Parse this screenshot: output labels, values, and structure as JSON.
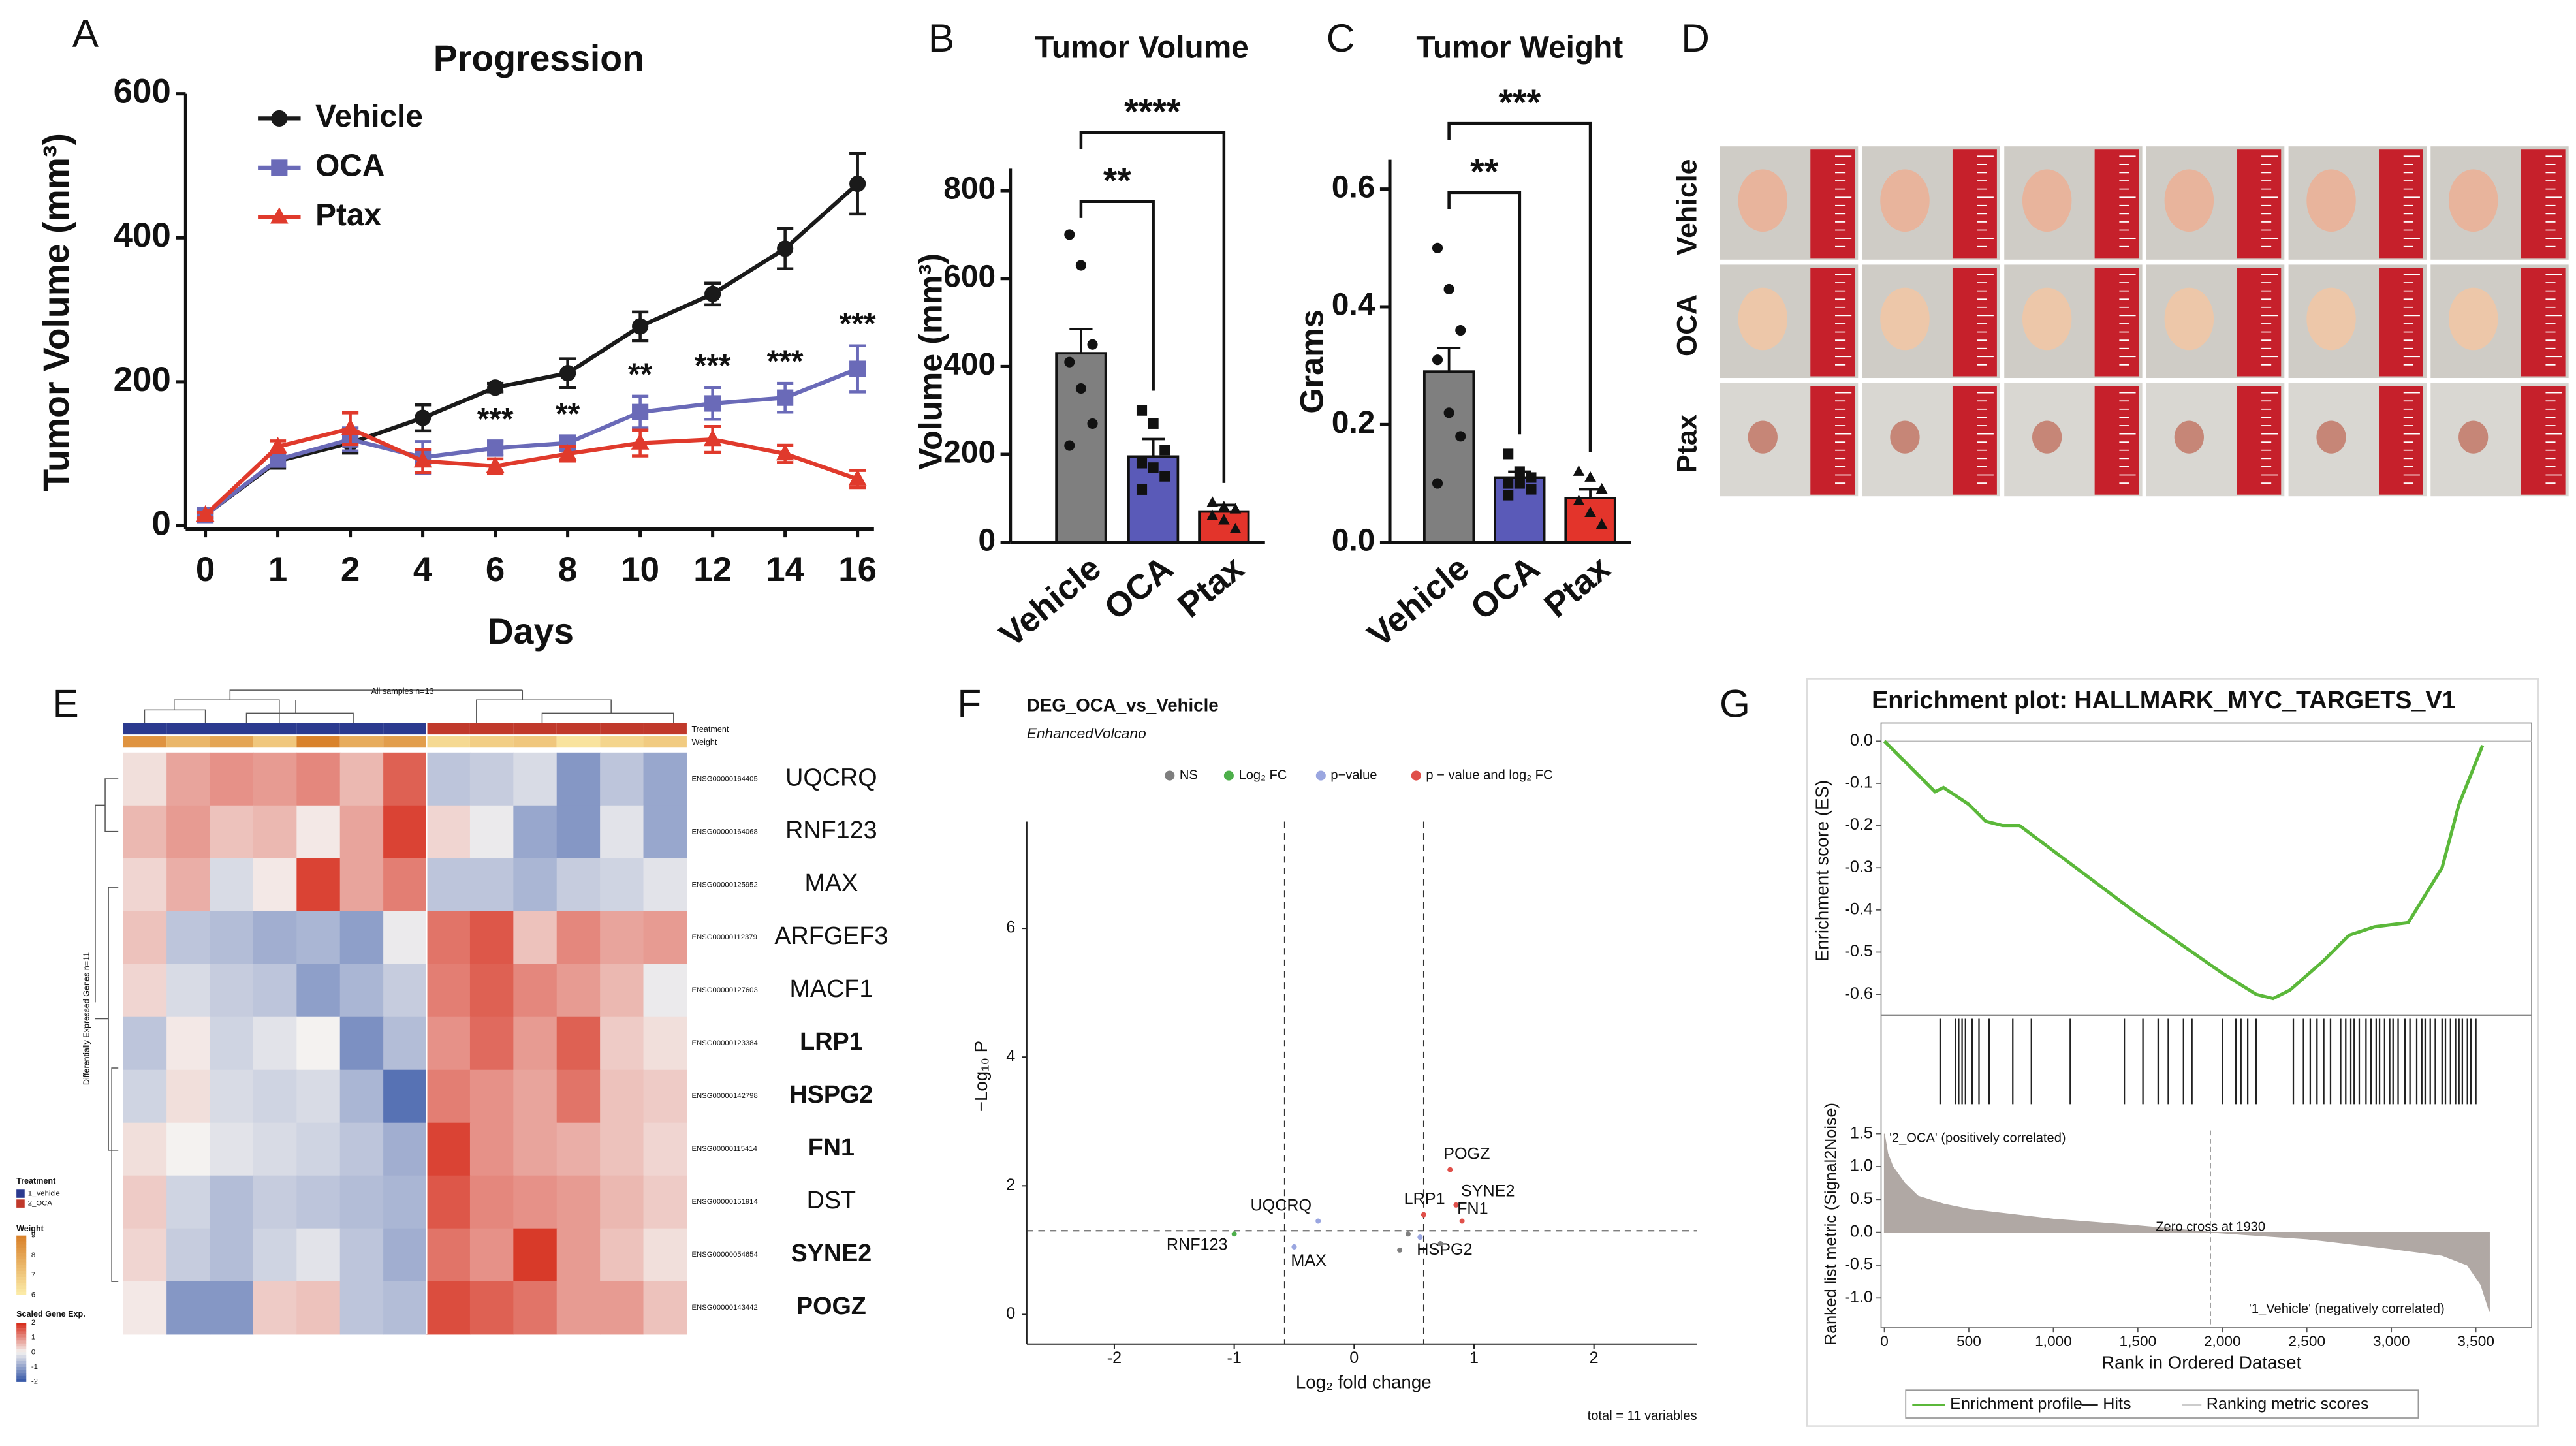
{
  "panel_labels": [
    "A",
    "B",
    "C",
    "D",
    "E",
    "F",
    "G"
  ],
  "panel_d": {
    "rows": [
      "Vehicle",
      "OCA",
      "Ptax"
    ]
  },
  "chart_data": [
    {
      "type": "line",
      "title": "Progression",
      "xlabel": "Days",
      "ylabel": "Tumor Volume (mm³)",
      "categories": [
        0,
        1,
        2,
        4,
        6,
        8,
        10,
        12,
        14,
        16
      ],
      "ylim": [
        0,
        600
      ],
      "yticks": [
        0,
        200,
        400,
        600
      ],
      "legend": "upper left",
      "series": [
        {
          "name": "Vehicle",
          "color": "#1a1a1a",
          "marker": "circle",
          "values": [
            15,
            90,
            115,
            150,
            192,
            212,
            277,
            322,
            385,
            475
          ],
          "errors": [
            4,
            10,
            14,
            18,
            6,
            20,
            20,
            15,
            28,
            42
          ]
        },
        {
          "name": "OCA",
          "color": "#6a6ab8",
          "marker": "square",
          "values": [
            15,
            92,
            120,
            95,
            108,
            115,
            158,
            170,
            178,
            218
          ],
          "errors": [
            4,
            8,
            16,
            22,
            10,
            10,
            22,
            22,
            20,
            32
          ],
          "significance": [
            null,
            null,
            null,
            null,
            "***",
            "**",
            "**",
            "***",
            "***",
            "***"
          ]
        },
        {
          "name": "Ptax",
          "color": "#e03a2c",
          "marker": "triangle",
          "values": [
            15,
            110,
            135,
            90,
            83,
            100,
            115,
            120,
            100,
            65
          ],
          "errors": [
            4,
            8,
            22,
            16,
            10,
            10,
            18,
            18,
            12,
            12
          ]
        }
      ]
    },
    {
      "type": "bar",
      "title": "Tumor Volume",
      "ylabel": "Volume (mm³)",
      "categories": [
        "Vehicle",
        "OCA",
        "Ptax"
      ],
      "values": [
        430,
        195,
        70
      ],
      "errors": [
        55,
        40,
        15
      ],
      "colors": [
        "#7f7f7f",
        "#5a5ab8",
        "#e3342b"
      ],
      "markers": [
        "circle",
        "square",
        "triangle"
      ],
      "points": [
        [
          700,
          630,
          450,
          410,
          350,
          270,
          220
        ],
        [
          300,
          270,
          210,
          180,
          170,
          150,
          120
        ],
        [
          90,
          80,
          75,
          60,
          50,
          30
        ]
      ],
      "ylim": [
        0,
        850
      ],
      "yticks": [
        0,
        200,
        400,
        600,
        800
      ],
      "brackets": [
        {
          "from": 0,
          "to": 1,
          "label": "**"
        },
        {
          "from": 0,
          "to": 2,
          "label": "****"
        }
      ]
    },
    {
      "type": "bar",
      "title": "Tumor Weight",
      "ylabel": "Grams",
      "categories": [
        "Vehicle",
        "OCA",
        "Ptax"
      ],
      "values": [
        0.29,
        0.11,
        0.075
      ],
      "errors": [
        0.04,
        0.01,
        0.015
      ],
      "colors": [
        "#7f7f7f",
        "#5a5ab8",
        "#e3342b"
      ],
      "markers": [
        "circle",
        "square",
        "triangle"
      ],
      "points": [
        [
          0.5,
          0.43,
          0.36,
          0.31,
          0.22,
          0.18,
          0.1
        ],
        [
          0.15,
          0.12,
          0.11,
          0.1,
          0.1,
          0.09,
          0.08
        ],
        [
          0.12,
          0.11,
          0.09,
          0.07,
          0.05,
          0.03
        ]
      ],
      "ylim": [
        0,
        0.65
      ],
      "yticks": [
        {
          "value": 0,
          "label": "0.0"
        },
        0.2,
        0.4,
        0.6
      ],
      "brackets": [
        {
          "from": 0,
          "to": 1,
          "label": "**"
        },
        {
          "from": 0,
          "to": 2,
          "label": "***"
        }
      ]
    },
    {
      "type": "heatmap",
      "title": "All samples n=13",
      "ylabel": "Differentially Expressed Genes n=11",
      "annotation_rows": [
        "Treatment",
        "Weight"
      ],
      "rows": [
        "UQCRQ",
        "RNF123",
        "MAX",
        "ARFGEF3",
        "MACF1",
        "LRP1",
        "HSPG2",
        "FN1",
        "DST",
        "SYNE2",
        "POGZ"
      ],
      "bold": [
        false,
        false,
        false,
        false,
        false,
        true,
        true,
        true,
        false,
        true,
        true
      ],
      "row_ids": [
        "ENSG00000164405",
        "ENSG00000164068",
        "ENSG00000125952",
        "ENSG00000112379",
        "ENSG00000127603",
        "ENSG00000123384",
        "ENSG00000142798",
        "ENSG00000115414",
        "ENSG00000151914",
        "ENSG00000054654",
        "ENSG00000143442"
      ],
      "groups": [
        {
          "name": "1_Vehicle",
          "color": "#2b3a8f"
        },
        {
          "name": "2_OCA",
          "color": "#c0392b"
        }
      ],
      "column_groups": [
        0,
        0,
        0,
        0,
        0,
        0,
        0,
        1,
        1,
        1,
        1,
        1,
        1
      ],
      "weights": [
        8.5,
        7.5,
        8,
        7,
        9,
        7.8,
        8.2,
        6.5,
        6.8,
        7,
        6.2,
        6.6,
        6.9
      ],
      "wlim": [
        6,
        9
      ],
      "wticks": [
        9,
        8,
        7,
        6
      ],
      "legend_titles": [
        "Treatment",
        "Weight",
        "Scaled Gene Exp."
      ],
      "colorscale": [
        "#3b5ba9",
        "#f4f2f0",
        "#d7301f"
      ],
      "clim": [
        -2,
        2
      ],
      "cticks": [
        2,
        1,
        0,
        -1,
        -2
      ],
      "values": [
        [
          0.2,
          0.8,
          1.0,
          0.9,
          1.1,
          0.6,
          1.5,
          -0.6,
          -0.5,
          -0.3,
          -1.2,
          -0.6,
          -1.0
        ],
        [
          0.6,
          0.9,
          0.5,
          0.6,
          0.1,
          0.8,
          1.8,
          0.3,
          -0.1,
          -1.0,
          -1.2,
          -0.2,
          -1.0
        ],
        [
          0.3,
          0.7,
          -0.3,
          0.1,
          1.8,
          0.8,
          1.2,
          -0.6,
          -0.6,
          -0.8,
          -0.5,
          -0.4,
          -0.2
        ],
        [
          0.5,
          -0.6,
          -0.7,
          -0.9,
          -0.8,
          -1.1,
          -0.1,
          1.3,
          1.6,
          0.5,
          1.1,
          0.8,
          0.9
        ],
        [
          0.3,
          -0.3,
          -0.5,
          -0.6,
          -1.1,
          -0.8,
          -0.5,
          1.2,
          1.5,
          1.1,
          0.9,
          0.6,
          -0.1
        ],
        [
          -0.6,
          0.1,
          -0.4,
          -0.2,
          0.0,
          -1.3,
          -0.7,
          1.0,
          1.4,
          0.9,
          1.5,
          0.4,
          0.2
        ],
        [
          -0.4,
          0.2,
          -0.3,
          -0.4,
          -0.3,
          -0.8,
          -1.7,
          1.2,
          1.0,
          0.8,
          1.3,
          0.5,
          0.4
        ],
        [
          0.2,
          0.0,
          -0.2,
          -0.3,
          -0.4,
          -0.6,
          -0.9,
          1.8,
          1.0,
          0.8,
          0.7,
          0.5,
          0.3
        ],
        [
          0.4,
          -0.4,
          -0.7,
          -0.5,
          -0.6,
          -0.7,
          -0.8,
          1.6,
          1.1,
          1.0,
          0.9,
          0.6,
          0.4
        ],
        [
          0.3,
          -0.5,
          -0.7,
          -0.4,
          -0.2,
          -0.6,
          -0.9,
          1.3,
          1.0,
          1.9,
          0.9,
          0.5,
          0.2
        ],
        [
          0.1,
          -1.2,
          -1.2,
          0.4,
          0.5,
          -0.6,
          -0.7,
          1.7,
          1.5,
          1.3,
          0.9,
          0.9,
          0.5
        ]
      ]
    },
    {
      "type": "scatter",
      "title": "DEG_OCA_vs_Vehicle",
      "subtitle": "EnhancedVolcano",
      "xlabel": "Log₂ fold change",
      "ylabel": "−Log₁₀ P",
      "caption": "total = 11 variables",
      "legend": [
        {
          "name": "NS",
          "color": "#7f7f7f"
        },
        {
          "name": "Log₂ FC",
          "color": "#4daf4a"
        },
        {
          "name": "p−value",
          "color": "#9aa6e0"
        },
        {
          "name": "p − value and log₂ FC",
          "color": "#e0504a"
        }
      ],
      "labels": [
        "POGZ",
        "SYNE2",
        "FN1",
        "LRP1",
        "HSPG2",
        "UQCRQ",
        "RNF123",
        "MAX",
        null,
        null,
        null
      ],
      "x": [
        0.8,
        0.85,
        0.9,
        0.58,
        0.55,
        -0.3,
        -1.0,
        -0.5,
        0.38,
        0.72,
        0.45
      ],
      "y": [
        2.25,
        1.7,
        1.45,
        1.55,
        1.2,
        1.45,
        1.25,
        1.05,
        1.0,
        1.1,
        1.25
      ],
      "groups": [
        3,
        3,
        3,
        3,
        2,
        2,
        1,
        2,
        0,
        0,
        0
      ],
      "xlim": [
        -2.73,
        2.86
      ],
      "ylim": [
        -0.46,
        7.66
      ],
      "xticks": [
        -2,
        -1,
        0,
        1,
        2
      ],
      "yticks": [
        0,
        2,
        4,
        6
      ],
      "vlines": [
        -0.58,
        0.58
      ],
      "hline": 1.3
    },
    {
      "type": "enrichment",
      "title": "Enrichment plot: HALLMARK_MYC_TARGETS_V1",
      "ylabel": "Enrichment score (ES)",
      "xlabel": "Rank in Ordered Dataset",
      "y2label": "Ranked list metric (Signal2Noise)",
      "xlim": [
        0,
        3830
      ],
      "xticks": [
        0,
        500,
        {
          "value": 1000,
          "label": "1,000"
        },
        {
          "value": 1500,
          "label": "1,500"
        },
        {
          "value": 2000,
          "label": "2,000"
        },
        {
          "value": 2500,
          "label": "2,500"
        },
        {
          "value": 3000,
          "label": "3,000"
        },
        {
          "value": 3500,
          "label": "3,500"
        }
      ],
      "ylim": [
        -0.65,
        0.043
      ],
      "yticks": [
        {
          "value": 0,
          "label": "0.0"
        },
        -0.1,
        -0.2,
        -0.3,
        -0.4,
        -0.5,
        -0.6
      ],
      "y2lim": [
        -1.45,
        1.55
      ],
      "y2ticks": [
        1.5,
        {
          "value": 1,
          "label": "1.0"
        },
        0.5,
        {
          "value": 0,
          "label": "0.0"
        },
        -0.5,
        {
          "value": -1,
          "label": "-1.0"
        }
      ],
      "es": {
        "x": [
          0,
          250,
          300,
          350,
          500,
          600,
          700,
          800,
          1000,
          1500,
          2000,
          2200,
          2300,
          2400,
          2600,
          2750,
          2900,
          3100,
          3300,
          3400,
          3500,
          3540
        ],
        "y": [
          0,
          -0.1,
          -0.12,
          -0.11,
          -0.15,
          -0.19,
          -0.2,
          -0.2,
          -0.26,
          -0.41,
          -0.55,
          -0.6,
          -0.61,
          -0.59,
          -0.52,
          -0.46,
          -0.44,
          -0.43,
          -0.3,
          -0.15,
          -0.05,
          -0.01
        ],
        "color": "#5bb83a"
      },
      "hits": [
        330,
        420,
        440,
        460,
        480,
        520,
        560,
        620,
        760,
        870,
        1100,
        1420,
        1530,
        1620,
        1680,
        1770,
        1820,
        2000,
        2080,
        2110,
        2150,
        2200,
        2420,
        2480,
        2520,
        2560,
        2600,
        2640,
        2700,
        2730,
        2760,
        2780,
        2810,
        2850,
        2880,
        2910,
        2930,
        2960,
        2990,
        3010,
        3040,
        3080,
        3110,
        3150,
        3180,
        3200,
        3230,
        3260,
        3300,
        3320,
        3350,
        3380,
        3400,
        3420,
        3450,
        3470,
        3500
      ],
      "metric": {
        "x": [
          0,
          20,
          50,
          120,
          200,
          350,
          500,
          800,
          1000,
          1500,
          1930,
          2500,
          3000,
          3300,
          3450,
          3530,
          3580
        ],
        "y": [
          1.5,
          1.2,
          1.0,
          0.75,
          0.55,
          0.43,
          0.35,
          0.26,
          0.2,
          0.1,
          0,
          -0.1,
          -0.25,
          -0.35,
          -0.5,
          -0.8,
          -1.2
        ],
        "color": "#b0a8a4"
      },
      "zero_cross": 1930,
      "annotations": [
        "'2_OCA' (positively correlated)",
        "Zero cross at 1930",
        "'1_Vehicle' (negatively correlated)"
      ],
      "legend": [
        "Enrichment profile",
        "Hits",
        "Ranking metric scores"
      ]
    }
  ]
}
